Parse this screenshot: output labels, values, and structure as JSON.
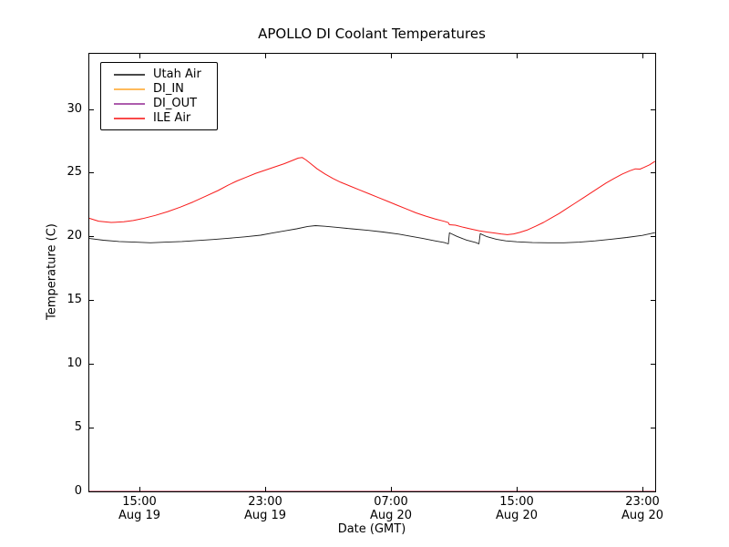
{
  "chart_data": {
    "type": "line",
    "title": "APOLLO DI Coolant Temperatures",
    "xlabel": "Date (GMT)",
    "ylabel": "Temperature (C)",
    "x_unit": "hours since Aug 19 12:00 GMT",
    "xlim": [
      -0.25,
      35.81
    ],
    "ylim": [
      0,
      34.4
    ],
    "grid": false,
    "legend_position": "upper left",
    "x_ticks": [
      {
        "pos": 3,
        "time": "15:00",
        "date": "Aug 19"
      },
      {
        "pos": 11,
        "time": "23:00",
        "date": "Aug 19"
      },
      {
        "pos": 19,
        "time": "07:00",
        "date": "Aug 20"
      },
      {
        "pos": 27,
        "time": "15:00",
        "date": "Aug 20"
      },
      {
        "pos": 35,
        "time": "23:00",
        "date": "Aug 20"
      }
    ],
    "y_ticks": [
      0,
      5,
      10,
      15,
      20,
      25,
      30
    ],
    "series": [
      {
        "name": "Utah Air",
        "color": "#1c1c1c",
        "width": 0.9,
        "opacity": 1,
        "points": [
          [
            -0.25,
            19.85
          ],
          [
            0.7,
            19.7
          ],
          [
            1.7,
            19.6
          ],
          [
            2.7,
            19.55
          ],
          [
            3.7,
            19.5
          ],
          [
            4.7,
            19.55
          ],
          [
            5.7,
            19.6
          ],
          [
            6.7,
            19.68
          ],
          [
            7.7,
            19.76
          ],
          [
            8.7,
            19.86
          ],
          [
            9.7,
            19.97
          ],
          [
            10.7,
            20.1
          ],
          [
            11.5,
            20.28
          ],
          [
            12.3,
            20.45
          ],
          [
            13,
            20.6
          ],
          [
            13.7,
            20.78
          ],
          [
            14.2,
            20.85
          ],
          [
            14.8,
            20.8
          ],
          [
            15.5,
            20.72
          ],
          [
            16.5,
            20.6
          ],
          [
            17.5,
            20.48
          ],
          [
            18.5,
            20.35
          ],
          [
            19.5,
            20.18
          ],
          [
            20.3,
            20.0
          ],
          [
            21,
            19.85
          ],
          [
            21.8,
            19.65
          ],
          [
            22.4,
            19.52
          ],
          [
            22.65,
            19.42
          ],
          [
            22.72,
            20.28
          ],
          [
            23.2,
            20.0
          ],
          [
            23.8,
            19.72
          ],
          [
            24.4,
            19.52
          ],
          [
            24.6,
            19.42
          ],
          [
            24.68,
            20.22
          ],
          [
            25.1,
            19.98
          ],
          [
            25.7,
            19.78
          ],
          [
            26.3,
            19.65
          ],
          [
            27,
            19.58
          ],
          [
            28,
            19.52
          ],
          [
            29,
            19.5
          ],
          [
            30,
            19.5
          ],
          [
            31,
            19.55
          ],
          [
            32,
            19.65
          ],
          [
            33,
            19.78
          ],
          [
            34,
            19.92
          ],
          [
            35,
            20.08
          ],
          [
            35.8,
            20.3
          ]
        ]
      },
      {
        "name": "DI_IN",
        "color": "#ffaa33",
        "width": 1.2,
        "opacity": 1,
        "points": [
          [
            -0.25,
            0
          ],
          [
            35.8,
            0
          ]
        ]
      },
      {
        "name": "DI_OUT",
        "color": "#993399",
        "width": 1.2,
        "opacity": 0.7,
        "points": [
          [
            -0.25,
            0
          ],
          [
            35.8,
            0
          ]
        ]
      },
      {
        "name": "ILE Air",
        "color": "#f81b1b",
        "width": 1,
        "opacity": 1,
        "points": [
          [
            -0.25,
            21.45
          ],
          [
            0.4,
            21.2
          ],
          [
            1.2,
            21.1
          ],
          [
            2,
            21.15
          ],
          [
            2.6,
            21.25
          ],
          [
            3.2,
            21.4
          ],
          [
            4,
            21.65
          ],
          [
            4.8,
            21.95
          ],
          [
            5.6,
            22.3
          ],
          [
            6.4,
            22.7
          ],
          [
            7.2,
            23.15
          ],
          [
            8,
            23.6
          ],
          [
            8.6,
            24.0
          ],
          [
            9.2,
            24.35
          ],
          [
            9.8,
            24.65
          ],
          [
            10.4,
            24.95
          ],
          [
            11,
            25.2
          ],
          [
            11.6,
            25.45
          ],
          [
            12.2,
            25.7
          ],
          [
            12.8,
            26.0
          ],
          [
            13.1,
            26.15
          ],
          [
            13.35,
            26.2
          ],
          [
            13.6,
            26.0
          ],
          [
            13.9,
            25.7
          ],
          [
            14.3,
            25.3
          ],
          [
            14.8,
            24.9
          ],
          [
            15.3,
            24.55
          ],
          [
            15.8,
            24.25
          ],
          [
            16.4,
            23.95
          ],
          [
            17,
            23.65
          ],
          [
            17.6,
            23.35
          ],
          [
            18.2,
            23.05
          ],
          [
            18.8,
            22.75
          ],
          [
            19.4,
            22.45
          ],
          [
            20,
            22.15
          ],
          [
            20.6,
            21.85
          ],
          [
            21.2,
            21.6
          ],
          [
            21.8,
            21.38
          ],
          [
            22.4,
            21.18
          ],
          [
            22.65,
            21.08
          ],
          [
            22.72,
            20.92
          ],
          [
            23.1,
            20.88
          ],
          [
            23.6,
            20.72
          ],
          [
            24.1,
            20.58
          ],
          [
            24.6,
            20.45
          ],
          [
            25.1,
            20.35
          ],
          [
            25.6,
            20.27
          ],
          [
            26,
            20.2
          ],
          [
            26.4,
            20.14
          ],
          [
            26.8,
            20.2
          ],
          [
            27.2,
            20.32
          ],
          [
            27.7,
            20.52
          ],
          [
            28.2,
            20.8
          ],
          [
            28.7,
            21.1
          ],
          [
            29.2,
            21.45
          ],
          [
            29.7,
            21.8
          ],
          [
            30.2,
            22.2
          ],
          [
            30.7,
            22.6
          ],
          [
            31.2,
            23.0
          ],
          [
            31.7,
            23.4
          ],
          [
            32.2,
            23.8
          ],
          [
            32.7,
            24.2
          ],
          [
            33.2,
            24.55
          ],
          [
            33.7,
            24.88
          ],
          [
            34.2,
            25.15
          ],
          [
            34.55,
            25.3
          ],
          [
            34.85,
            25.28
          ],
          [
            35.1,
            25.42
          ],
          [
            35.45,
            25.62
          ],
          [
            35.8,
            25.9
          ]
        ]
      }
    ]
  }
}
